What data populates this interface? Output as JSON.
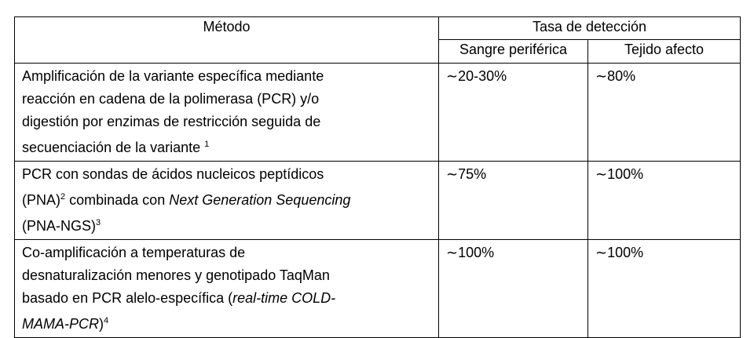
{
  "table": {
    "header": {
      "method": "Método",
      "rate": "Tasa de detección",
      "blood": "Sangre periférica",
      "tissue": "Tejido afecto"
    },
    "rows": [
      {
        "method": [
          [
            {
              "text": "Amplificación de la variante específica mediante"
            }
          ],
          [
            {
              "text": "reacción en cadena de la polimerasa (PCR) y/o"
            }
          ],
          [
            {
              "text": "digestión por enzimas de restricción seguida de"
            }
          ],
          [
            {
              "text": "secuenciación de la variante "
            },
            {
              "text": "1",
              "style": "sup"
            }
          ]
        ],
        "blood": "∼20-30%",
        "tissue": "∼80%"
      },
      {
        "method": [
          [
            {
              "text": "PCR con sondas de ácidos nucleicos peptídicos"
            }
          ],
          [
            {
              "text": "(PNA)"
            },
            {
              "text": "2",
              "style": "sup"
            },
            {
              "text": " combinada con "
            },
            {
              "text": "Next Generation Sequencing",
              "style": "italic"
            }
          ],
          [
            {
              "text": "(PNA-NGS)"
            },
            {
              "text": "3",
              "style": "sup"
            }
          ]
        ],
        "blood": "∼75%",
        "tissue": "∼100%"
      },
      {
        "method": [
          [
            {
              "text": "Co-amplificación a temperaturas de"
            }
          ],
          [
            {
              "text": "desnaturalización menores y genotipado TaqMan"
            }
          ],
          [
            {
              "text": "basado en PCR alelo-específica ("
            },
            {
              "text": "real-time COLD-",
              "style": "italic"
            }
          ],
          [
            {
              "text": "MAMA-PCR",
              "style": "italic"
            },
            {
              "text": ")"
            },
            {
              "text": "4",
              "style": "sup"
            }
          ]
        ],
        "blood": "∼100%",
        "tissue": "∼100%"
      }
    ]
  }
}
